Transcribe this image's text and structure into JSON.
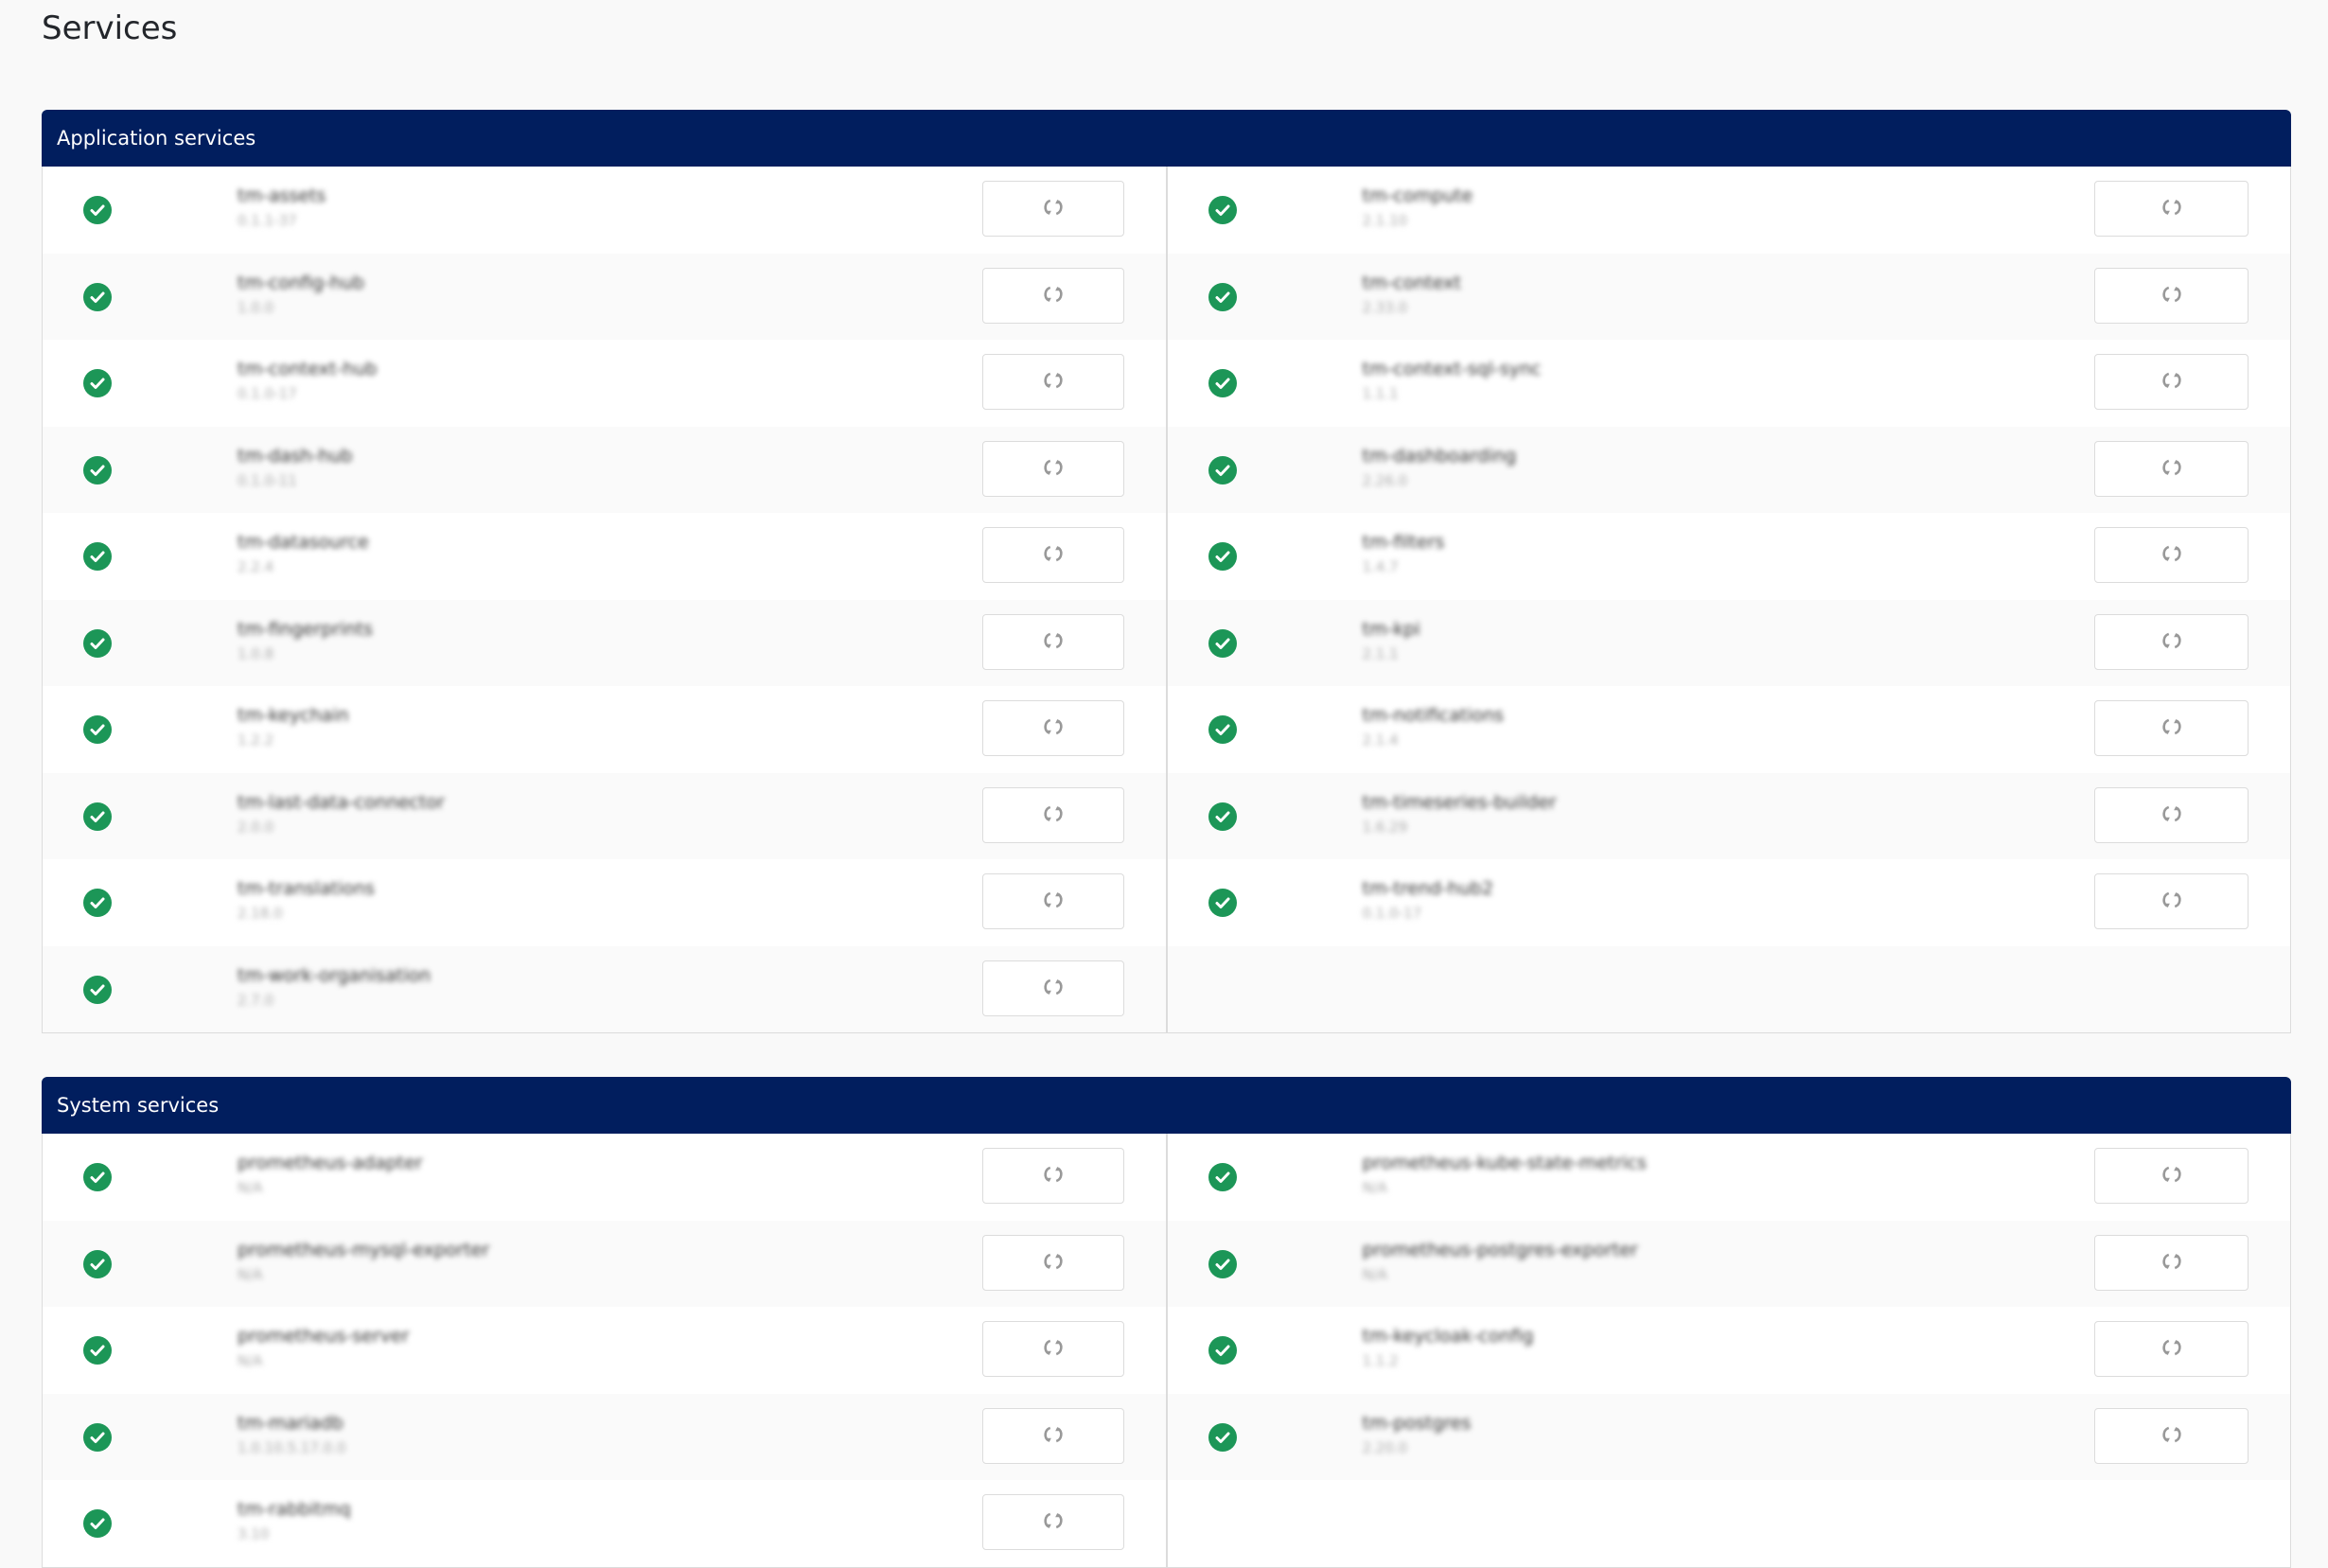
{
  "page": {
    "title": "Services"
  },
  "colors": {
    "header": "#011e5e",
    "ok": "#1c9657",
    "restart_icon": "#999999"
  },
  "sections": [
    {
      "title": "Application services",
      "left": [
        {
          "name": "tm-assets",
          "version": "0.1.1-37",
          "status": "ok"
        },
        {
          "name": "tm-config-hub",
          "version": "1.0.0",
          "status": "ok"
        },
        {
          "name": "tm-context-hub",
          "version": "0.1.0-17",
          "status": "ok"
        },
        {
          "name": "tm-dash-hub",
          "version": "0.1.0-11",
          "status": "ok"
        },
        {
          "name": "tm-datasource",
          "version": "2.2.4",
          "status": "ok"
        },
        {
          "name": "tm-fingerprints",
          "version": "1.0.8",
          "status": "ok"
        },
        {
          "name": "tm-keychain",
          "version": "1.2.2",
          "status": "ok"
        },
        {
          "name": "tm-last-data-connector",
          "version": "2.0.0",
          "status": "ok"
        },
        {
          "name": "tm-translations",
          "version": "2.18.0",
          "status": "ok"
        },
        {
          "name": "tm-work-organisation",
          "version": "2.7.0",
          "status": "ok"
        }
      ],
      "right": [
        {
          "name": "tm-compute",
          "version": "2.1.10",
          "status": "ok"
        },
        {
          "name": "tm-context",
          "version": "2.33.0",
          "status": "ok"
        },
        {
          "name": "tm-context-sql-sync",
          "version": "1.1.1",
          "status": "ok"
        },
        {
          "name": "tm-dashboarding",
          "version": "2.26.0",
          "status": "ok"
        },
        {
          "name": "tm-filters",
          "version": "1.4.7",
          "status": "ok"
        },
        {
          "name": "tm-kpi",
          "version": "2.1.1",
          "status": "ok"
        },
        {
          "name": "tm-notifications",
          "version": "2.1.4",
          "status": "ok"
        },
        {
          "name": "tm-timeseries-builder",
          "version": "1.6.29",
          "status": "ok"
        },
        {
          "name": "tm-trend-hub2",
          "version": "0.1.0-17",
          "status": "ok"
        }
      ]
    },
    {
      "title": "System services",
      "left": [
        {
          "name": "prometheus-adapter",
          "version": "N/A",
          "status": "ok"
        },
        {
          "name": "prometheus-mysql-exporter",
          "version": "N/A",
          "status": "ok"
        },
        {
          "name": "prometheus-server",
          "version": "N/A",
          "status": "ok"
        },
        {
          "name": "tm-mariadb",
          "version": "1.0.10.5.17.0.0",
          "status": "ok"
        },
        {
          "name": "tm-rabbitmq",
          "version": "3.10",
          "status": "ok"
        }
      ],
      "right": [
        {
          "name": "prometheus-kube-state-metrics",
          "version": "N/A",
          "status": "ok"
        },
        {
          "name": "prometheus-postgres-exporter",
          "version": "N/A",
          "status": "ok"
        },
        {
          "name": "tm-keycloak-config",
          "version": "1.1.2",
          "status": "ok"
        },
        {
          "name": "tm-postgres",
          "version": "2.20.0",
          "status": "ok"
        }
      ]
    }
  ]
}
